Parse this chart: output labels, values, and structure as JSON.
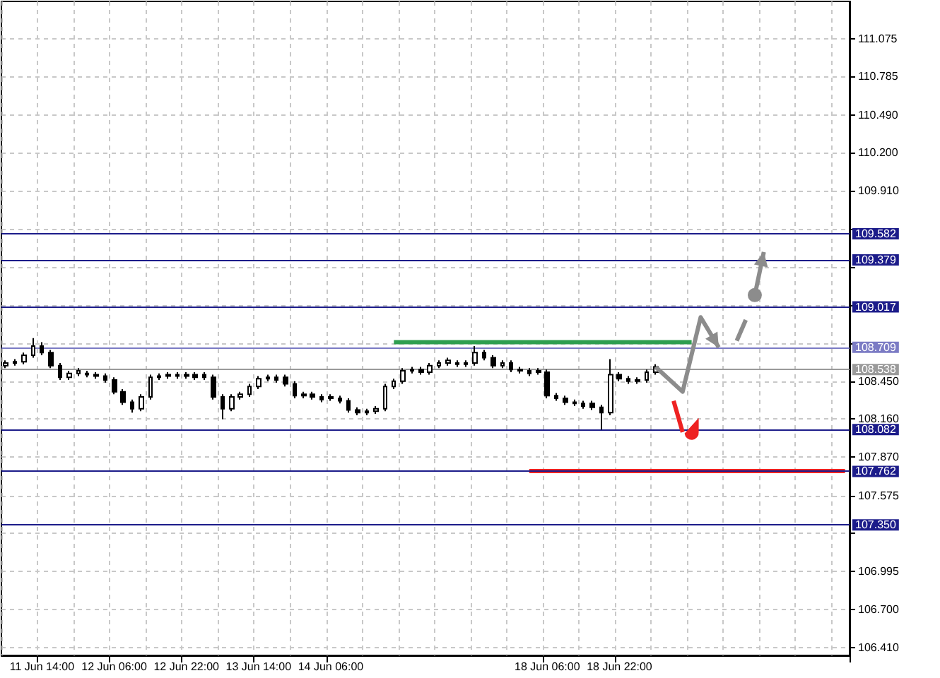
{
  "chart_data": {
    "type": "candlestick",
    "categories": [
      null,
      null,
      null,
      null,
      "11 Jun 14:00",
      null,
      null,
      null,
      null,
      null,
      null,
      null,
      "12 Jun 06:00",
      null,
      null,
      null,
      null,
      null,
      null,
      null,
      "12 Jun 22:00",
      null,
      null,
      null,
      null,
      null,
      null,
      null,
      "13 Jun 14:00",
      null,
      null,
      null,
      null,
      null,
      null,
      null,
      "14 Jun 06:00",
      null,
      null,
      null,
      null,
      null,
      null,
      null,
      null,
      null,
      null,
      null,
      null,
      null,
      null,
      null,
      null,
      null,
      null,
      null,
      null,
      null,
      null,
      null,
      "18 Jun 06:00",
      null,
      null,
      null,
      null,
      null,
      null,
      null,
      "18 Jun 22:00",
      null,
      null,
      null,
      null,
      null,
      null,
      null,
      null,
      null,
      null,
      null,
      null,
      null,
      null,
      null,
      null,
      null,
      null,
      null,
      null,
      null,
      null,
      null,
      null,
      null
    ],
    "ohlc": [
      [
        108.57,
        108.61,
        108.55,
        108.59
      ],
      [
        108.59,
        108.62,
        108.57,
        108.6
      ],
      [
        108.6,
        108.67,
        108.58,
        108.65
      ],
      [
        108.65,
        108.78,
        108.63,
        108.72
      ],
      [
        108.72,
        108.75,
        108.65,
        108.67
      ],
      [
        108.67,
        108.69,
        108.55,
        108.57
      ],
      [
        108.57,
        108.59,
        108.46,
        108.48
      ],
      [
        108.48,
        108.53,
        108.46,
        108.51
      ],
      [
        108.51,
        108.55,
        108.49,
        108.53
      ],
      [
        108.51,
        108.53,
        108.48,
        108.5
      ],
      [
        108.5,
        108.52,
        108.47,
        108.49
      ],
      [
        108.49,
        108.51,
        108.44,
        108.46
      ],
      [
        108.46,
        108.48,
        108.35,
        108.37
      ],
      [
        108.37,
        108.39,
        108.27,
        108.29
      ],
      [
        108.29,
        108.31,
        108.21,
        108.24
      ],
      [
        108.24,
        108.35,
        108.22,
        108.33
      ],
      [
        108.33,
        108.5,
        108.31,
        108.48
      ],
      [
        108.48,
        108.51,
        108.46,
        108.49
      ],
      [
        108.49,
        108.52,
        108.47,
        108.5
      ],
      [
        108.5,
        108.52,
        108.47,
        108.49
      ],
      [
        108.49,
        108.52,
        108.47,
        108.5
      ],
      [
        108.5,
        108.52,
        108.46,
        108.48
      ],
      [
        108.5,
        108.52,
        108.46,
        108.48
      ],
      [
        108.48,
        108.5,
        108.31,
        108.33
      ],
      [
        108.33,
        108.35,
        108.16,
        108.24
      ],
      [
        108.24,
        108.35,
        108.22,
        108.33
      ],
      [
        108.33,
        108.37,
        108.31,
        108.35
      ],
      [
        108.35,
        108.43,
        108.33,
        108.41
      ],
      [
        108.41,
        108.49,
        108.39,
        108.47
      ],
      [
        108.47,
        108.5,
        108.45,
        108.48
      ],
      [
        108.48,
        108.5,
        108.44,
        108.46
      ],
      [
        108.48,
        108.5,
        108.41,
        108.43
      ],
      [
        108.43,
        108.45,
        108.32,
        108.34
      ],
      [
        108.34,
        108.37,
        108.32,
        108.35
      ],
      [
        108.35,
        108.37,
        108.31,
        108.33
      ],
      [
        108.33,
        108.35,
        108.29,
        108.31
      ],
      [
        108.33,
        108.35,
        108.3,
        108.32
      ],
      [
        108.32,
        108.34,
        108.28,
        108.3
      ],
      [
        108.3,
        108.32,
        108.21,
        108.23
      ],
      [
        108.23,
        108.25,
        108.19,
        108.21
      ],
      [
        108.21,
        108.24,
        108.19,
        108.22
      ],
      [
        108.22,
        108.26,
        108.2,
        108.24
      ],
      [
        108.24,
        108.43,
        108.22,
        108.41
      ],
      [
        108.41,
        108.47,
        108.39,
        108.45
      ],
      [
        108.45,
        108.55,
        108.43,
        108.53
      ],
      [
        108.53,
        108.56,
        108.51,
        108.54
      ],
      [
        108.54,
        108.56,
        108.5,
        108.52
      ],
      [
        108.52,
        108.59,
        108.5,
        108.57
      ],
      [
        108.57,
        108.61,
        108.55,
        108.59
      ],
      [
        108.59,
        108.63,
        108.57,
        108.61
      ],
      [
        108.59,
        108.61,
        108.56,
        108.58
      ],
      [
        108.58,
        108.61,
        108.56,
        108.59
      ],
      [
        108.59,
        108.72,
        108.57,
        108.67
      ],
      [
        108.67,
        108.69,
        108.61,
        108.63
      ],
      [
        108.63,
        108.65,
        108.55,
        108.57
      ],
      [
        108.57,
        108.61,
        108.55,
        108.59
      ],
      [
        108.59,
        108.61,
        108.52,
        108.54
      ],
      [
        108.54,
        108.56,
        108.51,
        108.53
      ],
      [
        108.53,
        108.55,
        108.49,
        108.51
      ],
      [
        108.53,
        108.55,
        108.5,
        108.52
      ],
      [
        108.52,
        108.54,
        108.32,
        108.34
      ],
      [
        108.34,
        108.36,
        108.3,
        108.32
      ],
      [
        108.32,
        108.34,
        108.27,
        108.29
      ],
      [
        108.29,
        108.31,
        108.26,
        108.28
      ],
      [
        108.28,
        108.3,
        108.24,
        108.26
      ],
      [
        108.28,
        108.3,
        108.23,
        108.25
      ],
      [
        108.25,
        108.27,
        108.08,
        108.21
      ],
      [
        108.21,
        108.62,
        108.19,
        108.5
      ],
      [
        108.5,
        108.52,
        108.45,
        108.47
      ],
      [
        108.47,
        108.49,
        108.43,
        108.45
      ],
      [
        108.45,
        108.48,
        108.43,
        108.46
      ],
      [
        108.46,
        108.54,
        108.44,
        108.52
      ],
      [
        108.52,
        108.58,
        108.5,
        108.56
      ],
      null,
      null,
      null,
      null,
      null,
      null,
      null,
      null,
      null,
      null,
      null,
      null,
      null,
      null,
      null,
      null,
      null,
      null,
      null,
      null,
      null
    ],
    "series": [
      {
        "type": "line",
        "color": "#2e9e4f",
        "values": [
          null,
          null,
          null,
          null,
          null,
          null,
          null,
          null,
          null,
          null,
          null,
          null,
          null,
          null,
          null,
          null,
          null,
          null,
          null,
          null,
          null,
          null,
          null,
          null,
          null,
          null,
          null,
          null,
          null,
          null,
          null,
          null,
          null,
          null,
          null,
          null,
          null,
          null,
          null,
          null,
          null,
          null,
          null,
          108.75,
          null,
          null,
          null,
          null,
          null,
          null,
          null,
          null,
          null,
          null,
          null,
          null,
          null,
          null,
          null,
          null,
          null,
          null,
          null,
          null,
          null,
          null,
          null,
          null,
          null,
          null,
          null,
          null,
          null,
          null,
          null,
          null,
          108.75,
          null,
          null,
          null,
          null,
          null,
          null,
          null,
          null,
          null,
          null,
          null,
          null,
          null,
          null,
          null,
          null,
          null
        ]
      },
      {
        "type": "line",
        "color": "#ee2222",
        "values": [
          null,
          null,
          null,
          null,
          null,
          null,
          null,
          null,
          null,
          null,
          null,
          null,
          null,
          null,
          null,
          null,
          null,
          null,
          null,
          null,
          null,
          null,
          null,
          null,
          null,
          null,
          null,
          null,
          null,
          null,
          null,
          null,
          null,
          null,
          null,
          null,
          null,
          null,
          null,
          null,
          null,
          null,
          null,
          null,
          null,
          null,
          null,
          null,
          null,
          null,
          null,
          null,
          null,
          null,
          null,
          null,
          null,
          null,
          107.762,
          null,
          null,
          null,
          null,
          null,
          null,
          null,
          null,
          null,
          null,
          null,
          null,
          null,
          null,
          null,
          null,
          null,
          null,
          null,
          null,
          null,
          null,
          null,
          null,
          null,
          null,
          null,
          null,
          null,
          null,
          null,
          null,
          null,
          null,
          107.762
        ]
      }
    ],
    "ylim": [
      106.35,
      111.36
    ],
    "yticks": [
      {
        "value": 106.41,
        "label": "106.410"
      },
      {
        "value": 106.7,
        "label": "106.700"
      },
      {
        "value": 106.995,
        "label": "106.995"
      },
      {
        "value": 107.285,
        "label": null
      },
      {
        "value": 107.575,
        "label": "107.575"
      },
      {
        "value": 107.87,
        "label": "107.870"
      },
      {
        "value": 108.16,
        "label": "108.160"
      },
      {
        "value": 108.45,
        "label": "108.450"
      },
      {
        "value": 108.74,
        "label": null
      },
      {
        "value": 109.035,
        "label": null
      },
      {
        "value": 109.325,
        "label": null
      },
      {
        "value": 109.62,
        "label": null
      },
      {
        "value": 109.91,
        "label": "109.910"
      },
      {
        "value": 110.2,
        "label": "110.200"
      },
      {
        "value": 110.49,
        "label": "110.490"
      },
      {
        "value": 110.785,
        "label": "110.785"
      },
      {
        "value": 111.075,
        "label": "111.075"
      }
    ],
    "ref_lines": [
      {
        "axis": "y",
        "value": 109.582,
        "label": "109.582",
        "color": "#1c1c8a"
      },
      {
        "axis": "y",
        "value": 109.379,
        "label": "109.379",
        "color": "#1c1c8a"
      },
      {
        "axis": "y",
        "value": 109.017,
        "label": "109.017",
        "color": "#1c1c8a"
      },
      {
        "axis": "y",
        "value": 108.709,
        "label": "108.709",
        "color": "#7b7bc4"
      },
      {
        "axis": "y",
        "value": 108.538,
        "label": "108.538",
        "color": "#9a9a9a"
      },
      {
        "axis": "y",
        "value": 108.082,
        "label": "108.082",
        "color": "#1c1c8a"
      },
      {
        "axis": "y",
        "value": 107.762,
        "label": "107.762",
        "color": "#1c1c8a"
      },
      {
        "axis": "y",
        "value": 107.35,
        "label": "107.350",
        "color": "#1c1c8a"
      }
    ],
    "grid": true
  }
}
